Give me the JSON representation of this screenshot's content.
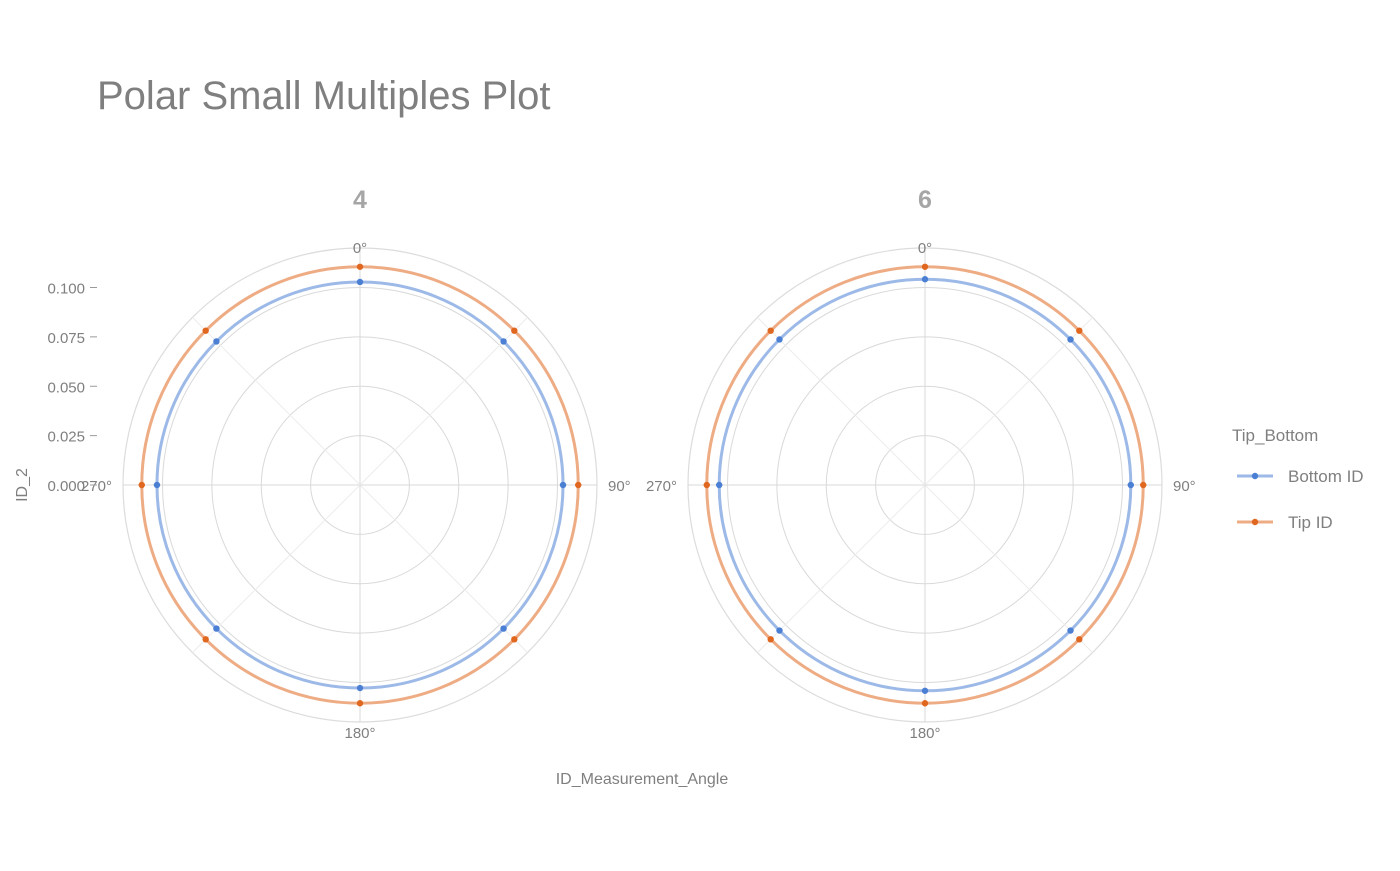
{
  "chart_data": {
    "type": "polar-line",
    "title": "Polar Small Multiples Plot",
    "xlabel": "ID_Measurement_Angle",
    "ylabel": "ID_2",
    "r_range": [
      0,
      0.12
    ],
    "r_ticks": [
      0.0,
      0.025,
      0.05,
      0.075,
      0.1
    ],
    "r_tick_labels": [
      "0.000",
      "0.025",
      "0.050",
      "0.075",
      "0.100"
    ],
    "angles": [
      0,
      45,
      90,
      135,
      180,
      225,
      270,
      315
    ],
    "angle_labels": [
      "0°",
      "90°",
      "180°",
      "270°"
    ],
    "grid": true,
    "legend": {
      "title": "Tip_Bottom",
      "placement": "right"
    },
    "colors": {
      "Bottom ID": "#4a7fd4",
      "Tip ID": "#e0671f"
    },
    "panels": [
      {
        "label": "4",
        "series": [
          {
            "name": "Bottom ID",
            "values": [
              0.1028,
              0.1028,
              0.1028,
              0.1028,
              0.1028,
              0.1028,
              0.1028,
              0.1028
            ]
          },
          {
            "name": "Tip ID",
            "values": [
              0.1105,
              0.1105,
              0.1105,
              0.1105,
              0.1105,
              0.1105,
              0.1105,
              0.1105
            ]
          }
        ]
      },
      {
        "label": "6",
        "series": [
          {
            "name": "Bottom ID",
            "values": [
              0.1042,
              0.1042,
              0.1042,
              0.1042,
              0.1042,
              0.1042,
              0.1042,
              0.1042
            ]
          },
          {
            "name": "Tip ID",
            "values": [
              0.1105,
              0.1105,
              0.1105,
              0.1105,
              0.1105,
              0.1105,
              0.1105,
              0.1105
            ]
          }
        ]
      }
    ]
  }
}
